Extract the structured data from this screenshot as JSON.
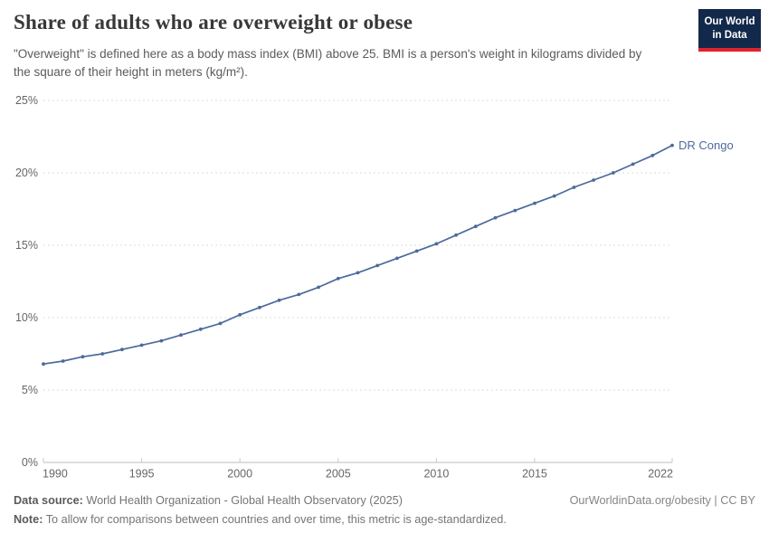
{
  "header": {
    "title": "Share of adults who are overweight or obese",
    "subtitle": "\"Overweight\" is defined here as a body mass index (BMI) above 25. BMI is a person's weight in kilograms divided by the square of their height in meters (kg/m²).",
    "logo_line1": "Our World",
    "logo_line2": "in Data"
  },
  "chart_data": {
    "type": "line",
    "title": "Share of adults who are overweight or obese",
    "xlabel": "",
    "ylabel": "",
    "xlim": [
      1990,
      2022
    ],
    "ylim": [
      0,
      25
    ],
    "grid": "horizontal-dashed",
    "legend_position": "end-of-line-label",
    "x_ticks": [
      1990,
      1995,
      2000,
      2005,
      2010,
      2015,
      2022
    ],
    "y_ticks": [
      {
        "value": 0,
        "label": "0%"
      },
      {
        "value": 5,
        "label": "5%"
      },
      {
        "value": 10,
        "label": "10%"
      },
      {
        "value": 15,
        "label": "15%"
      },
      {
        "value": 20,
        "label": "20%"
      },
      {
        "value": 25,
        "label": "25%"
      }
    ],
    "series": [
      {
        "name": "DR Congo",
        "color": "#4c6a9c",
        "x": [
          1990,
          1991,
          1992,
          1993,
          1994,
          1995,
          1996,
          1997,
          1998,
          1999,
          2000,
          2001,
          2002,
          2003,
          2004,
          2005,
          2006,
          2007,
          2008,
          2009,
          2010,
          2011,
          2012,
          2013,
          2014,
          2015,
          2016,
          2017,
          2018,
          2019,
          2020,
          2021,
          2022
        ],
        "values": [
          6.8,
          7.0,
          7.3,
          7.5,
          7.8,
          8.1,
          8.4,
          8.8,
          9.2,
          9.6,
          10.2,
          10.7,
          11.2,
          11.6,
          12.1,
          12.7,
          13.1,
          13.6,
          14.1,
          14.6,
          15.1,
          15.7,
          16.3,
          16.9,
          17.4,
          17.9,
          18.4,
          19.0,
          19.5,
          20.0,
          20.6,
          21.2,
          21.9
        ]
      }
    ]
  },
  "colors": {
    "line": "#4c6a9c",
    "grid": "#dcdcdc",
    "axis": "#bcbcbc",
    "tick_mark": "#c9c9c9",
    "tick_text": "#666666",
    "logo_bg": "#12294b",
    "logo_red": "#e0232e"
  },
  "footer": {
    "datasource_label": "Data source:",
    "datasource_text": " World Health Organization - Global Health Observatory (2025)",
    "rights": "OurWorldinData.org/obesity | CC BY",
    "note_label": "Note:",
    "note_text": " To allow for comparisons between countries and over time, this metric is age-standardized."
  }
}
